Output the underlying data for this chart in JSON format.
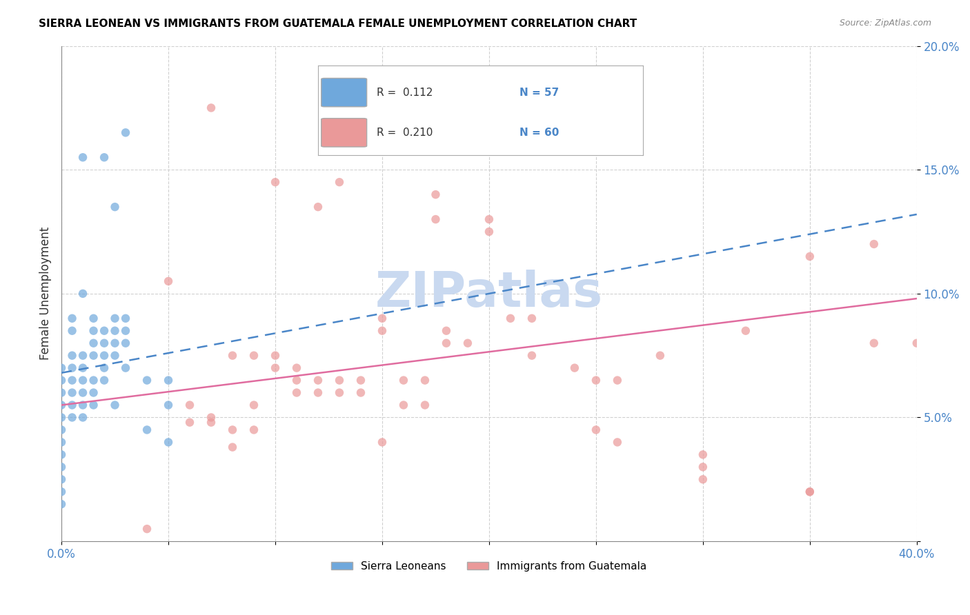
{
  "title": "SIERRA LEONEAN VS IMMIGRANTS FROM GUATEMALA FEMALE UNEMPLOYMENT CORRELATION CHART",
  "source": "Source: ZipAtlas.com",
  "ylabel": "Female Unemployment",
  "xlim": [
    0.0,
    0.4
  ],
  "ylim": [
    0.0,
    0.2
  ],
  "xticks": [
    0.0,
    0.05,
    0.1,
    0.15,
    0.2,
    0.25,
    0.3,
    0.35,
    0.4
  ],
  "yticks": [
    0.0,
    0.05,
    0.1,
    0.15,
    0.2
  ],
  "legend_r_blue": "R =  0.112",
  "legend_n_blue": "N = 57",
  "legend_r_pink": "R =  0.210",
  "legend_n_pink": "N = 60",
  "blue_color": "#6fa8dc",
  "pink_color": "#ea9999",
  "blue_line_color": "#4a86c8",
  "pink_line_color": "#e06c9f",
  "axis_label_color": "#4a86c8",
  "title_color": "#000000",
  "watermark_color": "#c9d9f0",
  "blue_scatter_x": [
    0.02,
    0.03,
    0.025,
    0.01,
    0.01,
    0.005,
    0.005,
    0.005,
    0.005,
    0.005,
    0.005,
    0.005,
    0.005,
    0.01,
    0.01,
    0.01,
    0.01,
    0.01,
    0.01,
    0.015,
    0.015,
    0.015,
    0.015,
    0.015,
    0.015,
    0.015,
    0.02,
    0.02,
    0.02,
    0.02,
    0.02,
    0.025,
    0.025,
    0.025,
    0.025,
    0.025,
    0.03,
    0.03,
    0.03,
    0.03,
    0.0,
    0.0,
    0.0,
    0.0,
    0.0,
    0.0,
    0.0,
    0.0,
    0.0,
    0.0,
    0.0,
    0.0,
    0.04,
    0.04,
    0.05,
    0.05,
    0.05
  ],
  "blue_scatter_y": [
    0.155,
    0.165,
    0.135,
    0.155,
    0.1,
    0.09,
    0.085,
    0.075,
    0.07,
    0.065,
    0.06,
    0.055,
    0.05,
    0.075,
    0.07,
    0.065,
    0.06,
    0.055,
    0.05,
    0.09,
    0.085,
    0.08,
    0.075,
    0.065,
    0.06,
    0.055,
    0.085,
    0.08,
    0.075,
    0.07,
    0.065,
    0.09,
    0.085,
    0.08,
    0.075,
    0.055,
    0.09,
    0.085,
    0.08,
    0.07,
    0.07,
    0.065,
    0.06,
    0.055,
    0.05,
    0.045,
    0.04,
    0.035,
    0.03,
    0.025,
    0.02,
    0.015,
    0.065,
    0.045,
    0.065,
    0.055,
    0.04
  ],
  "pink_scatter_x": [
    0.07,
    0.1,
    0.13,
    0.175,
    0.175,
    0.05,
    0.12,
    0.2,
    0.2,
    0.21,
    0.22,
    0.15,
    0.15,
    0.18,
    0.18,
    0.19,
    0.08,
    0.09,
    0.1,
    0.1,
    0.11,
    0.11,
    0.11,
    0.12,
    0.12,
    0.13,
    0.13,
    0.14,
    0.14,
    0.16,
    0.16,
    0.17,
    0.17,
    0.24,
    0.25,
    0.26,
    0.28,
    0.32,
    0.35,
    0.38,
    0.38,
    0.4,
    0.06,
    0.06,
    0.07,
    0.07,
    0.09,
    0.09,
    0.25,
    0.26,
    0.15,
    0.22,
    0.3,
    0.3,
    0.3,
    0.35,
    0.35,
    0.08,
    0.08,
    0.04
  ],
  "pink_scatter_y": [
    0.175,
    0.145,
    0.145,
    0.14,
    0.13,
    0.105,
    0.135,
    0.13,
    0.125,
    0.09,
    0.09,
    0.09,
    0.085,
    0.085,
    0.08,
    0.08,
    0.075,
    0.075,
    0.075,
    0.07,
    0.07,
    0.065,
    0.06,
    0.065,
    0.06,
    0.065,
    0.06,
    0.065,
    0.06,
    0.065,
    0.055,
    0.065,
    0.055,
    0.07,
    0.065,
    0.065,
    0.075,
    0.085,
    0.115,
    0.12,
    0.08,
    0.08,
    0.055,
    0.048,
    0.05,
    0.048,
    0.055,
    0.045,
    0.045,
    0.04,
    0.04,
    0.075,
    0.035,
    0.03,
    0.025,
    0.02,
    0.02,
    0.045,
    0.038,
    0.005
  ],
  "blue_trend_x": [
    0.0,
    0.4
  ],
  "blue_trend_y": [
    0.068,
    0.132
  ],
  "pink_trend_x": [
    0.0,
    0.4
  ],
  "pink_trend_y": [
    0.055,
    0.098
  ]
}
